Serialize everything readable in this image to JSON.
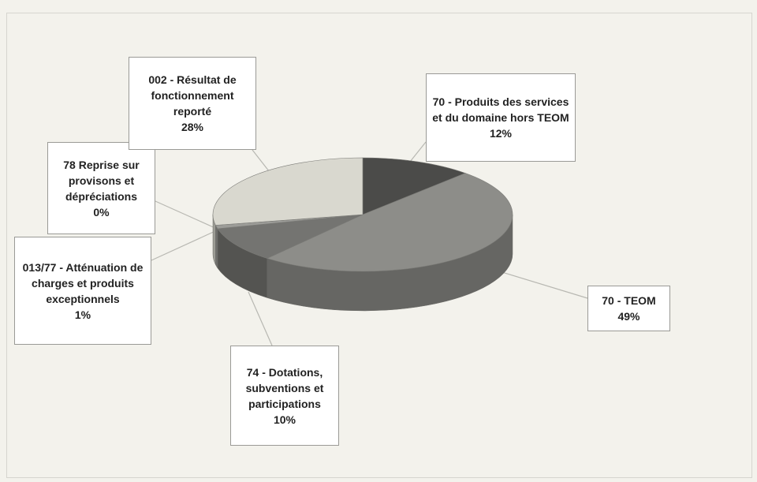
{
  "chart_data": {
    "type": "pie",
    "categories": [
      "70 - Produits des services et du domaine hors TEOM",
      "70 - TEOM",
      "74 - Dotations, subventions et participations",
      "013/77 - Atténuation de charges et produits exceptionnels",
      "78 Reprise sur provisons et dépréciations",
      "002 - Résultat de fonctionnement reporté"
    ],
    "values": [
      12,
      49,
      10,
      1,
      0,
      28
    ],
    "value_labels": [
      "12%",
      "49%",
      "10%",
      "1%",
      "0%",
      "28%"
    ],
    "colors": [
      "#4b4b49",
      "#8d8d89",
      "#747471",
      "#9c9c98",
      "#b0b0aa",
      "#d9d8cf"
    ]
  }
}
